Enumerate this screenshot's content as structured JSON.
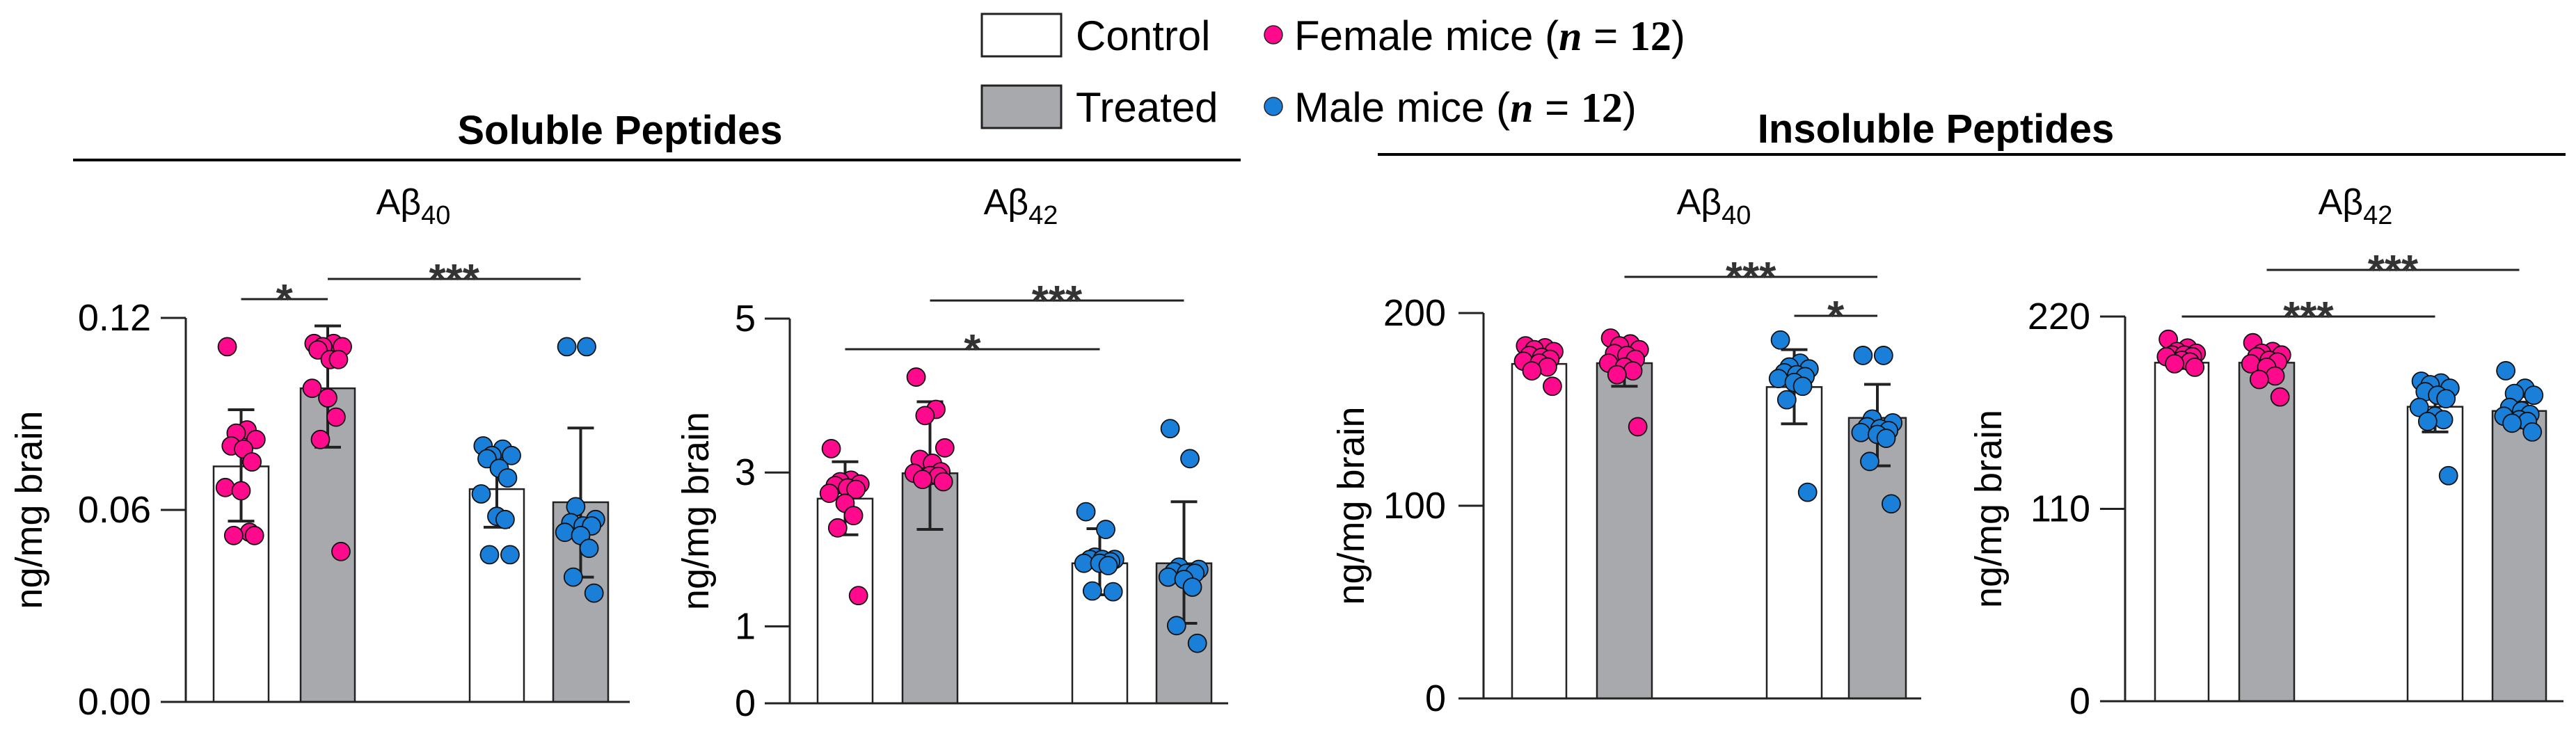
{
  "legend": {
    "conditions": [
      {
        "label": "Control",
        "fill": "#ffffff"
      },
      {
        "label": "Treated",
        "fill": "#a7a9ac"
      }
    ],
    "groups": [
      {
        "label": "Female mice",
        "n_symbol": "n",
        "n_value": "12",
        "color": "#ff0a8c"
      },
      {
        "label": "Male mice",
        "n_symbol": "n",
        "n_value": "12",
        "color": "#1a7fd9"
      }
    ]
  },
  "sections": [
    {
      "title": "Soluble Peptides"
    },
    {
      "title": "Insoluble Peptides"
    }
  ],
  "chart_data": [
    {
      "type": "bar",
      "section": "Soluble Peptides",
      "title": "Aβ",
      "title_sub": "40",
      "ylabel": "ng/mg brain",
      "ylim": [
        0,
        0.12
      ],
      "yticks": [
        {
          "v": 0,
          "label": "0.00"
        },
        {
          "v": 0.06,
          "label": "0.06"
        },
        {
          "v": 0.12,
          "label": "0.12"
        }
      ],
      "bars": [
        {
          "condition": "Control",
          "sex": "Female",
          "mean": 0.0736,
          "err_low": 0.0565,
          "err_high": 0.0913,
          "points": [
            0.111,
            0.085,
            0.084,
            0.082,
            0.08,
            0.079,
            0.075,
            0.067,
            0.066,
            0.053,
            0.052,
            0.052
          ]
        },
        {
          "condition": "Treated",
          "sex": "Female",
          "mean": 0.098,
          "err_low": 0.0796,
          "err_high": 0.1175,
          "points": [
            0.112,
            0.112,
            0.111,
            0.111,
            0.11,
            0.107,
            0.107,
            0.098,
            0.095,
            0.089,
            0.082,
            0.047
          ]
        },
        {
          "condition": "Control",
          "sex": "Male",
          "mean": 0.0665,
          "err_low": 0.0546,
          "err_high": 0.0784,
          "points": [
            0.08,
            0.079,
            0.077,
            0.077,
            0.076,
            0.073,
            0.07,
            0.065,
            0.058,
            0.057,
            0.046,
            0.046
          ]
        },
        {
          "condition": "Treated",
          "sex": "Male",
          "mean": 0.0624,
          "err_low": 0.039,
          "err_high": 0.0856,
          "points": [
            0.111,
            0.111,
            0.061,
            0.057,
            0.056,
            0.055,
            0.055,
            0.053,
            0.052,
            0.048,
            0.039,
            0.034
          ]
        }
      ],
      "significance": [
        {
          "from": 0,
          "to": 1,
          "label": "*"
        },
        {
          "from": 1,
          "to": 3,
          "label": "***"
        }
      ]
    },
    {
      "type": "bar",
      "section": "Soluble Peptides",
      "title": "Aβ",
      "title_sub": "42",
      "ylabel": "ng/mg brain",
      "ylim": [
        0,
        5
      ],
      "yticks": [
        {
          "v": 0,
          "label": "0"
        },
        {
          "v": 1,
          "label": "1"
        },
        {
          "v": 3,
          "label": "3"
        },
        {
          "v": 5,
          "label": "5"
        }
      ],
      "bars": [
        {
          "condition": "Control",
          "sex": "Female",
          "mean": 2.66,
          "err_low": 2.19,
          "err_high": 3.14,
          "points": [
            3.31,
            2.9,
            2.88,
            2.85,
            2.83,
            2.8,
            2.78,
            2.73,
            2.6,
            2.44,
            2.28,
            1.4
          ]
        },
        {
          "condition": "Treated",
          "sex": "Female",
          "mean": 2.99,
          "err_low": 2.26,
          "err_high": 3.92,
          "points": [
            4.24,
            3.82,
            3.74,
            3.32,
            3.17,
            3.12,
            3.01,
            2.99,
            2.96,
            2.95,
            2.91,
            2.88
          ]
        },
        {
          "condition": "Control",
          "sex": "Male",
          "mean": 1.82,
          "err_low": 1.41,
          "err_high": 2.27,
          "points": [
            2.49,
            2.26,
            1.9,
            1.87,
            1.87,
            1.87,
            1.84,
            1.82,
            1.82,
            1.79,
            1.46,
            1.45
          ]
        },
        {
          "condition": "Treated",
          "sex": "Male",
          "mean": 1.82,
          "err_low": 1.04,
          "err_high": 2.62,
          "points": [
            3.57,
            3.18,
            1.77,
            1.74,
            1.71,
            1.69,
            1.69,
            1.64,
            1.61,
            1.51,
            1.01,
            0.78
          ]
        }
      ],
      "significance": [
        {
          "from": 0,
          "to": 2,
          "label": "*"
        },
        {
          "from": 1,
          "to": 3,
          "label": "***"
        }
      ]
    },
    {
      "type": "bar",
      "section": "Insoluble Peptides",
      "title": "Aβ",
      "title_sub": "40",
      "ylabel": "ng/mg brain",
      "ylim": [
        0,
        200
      ],
      "yticks": [
        {
          "v": 0,
          "label": "0"
        },
        {
          "v": 100,
          "label": "100"
        },
        {
          "v": 200,
          "label": "200"
        }
      ],
      "bars": [
        {
          "condition": "Control",
          "sex": "Female",
          "mean": 173.6,
          "err_low": 171,
          "err_high": 176,
          "points": [
            183,
            182,
            181,
            180,
            178,
            177,
            176,
            175,
            174,
            172,
            170,
            162
          ]
        },
        {
          "condition": "Treated",
          "sex": "Female",
          "mean": 174,
          "err_low": 162,
          "err_high": 186,
          "points": [
            187,
            184,
            183,
            181,
            179,
            178,
            176,
            174,
            172,
            170,
            168,
            141
          ]
        },
        {
          "condition": "Control",
          "sex": "Male",
          "mean": 161.6,
          "err_low": 142.5,
          "err_high": 181,
          "points": [
            186,
            174,
            172,
            171,
            169,
            168,
            167,
            166,
            164,
            162,
            155,
            107
          ]
        },
        {
          "condition": "Treated",
          "sex": "Male",
          "mean": 145.6,
          "err_low": 120.7,
          "err_high": 163,
          "points": [
            178,
            178,
            145,
            143,
            141,
            140,
            139,
            138,
            137,
            135,
            123,
            101
          ]
        }
      ],
      "significance": [
        {
          "from": 1,
          "to": 3,
          "label": "***"
        },
        {
          "from": 2,
          "to": 3,
          "label": "*"
        }
      ]
    },
    {
      "type": "bar",
      "section": "Insoluble Peptides",
      "title": "Aβ",
      "title_sub": "42",
      "ylabel": "ng/mg brain",
      "ylim": [
        0,
        220
      ],
      "yticks": [
        {
          "v": 0,
          "label": "0"
        },
        {
          "v": 110,
          "label": "110"
        },
        {
          "v": 220,
          "label": "220"
        }
      ],
      "bars": [
        {
          "condition": "Control",
          "sex": "Female",
          "mean": 193.6,
          "err_low": 191,
          "err_high": 196,
          "points": [
            207,
            202,
            200,
            199,
            198,
            198,
            197,
            197,
            195,
            194,
            193,
            191
          ]
        },
        {
          "condition": "Treated",
          "sex": "Female",
          "mean": 193.6,
          "err_low": 186,
          "err_high": 201,
          "points": [
            205,
            200,
            199,
            198,
            197,
            195,
            194,
            193,
            191,
            186,
            184,
            174
          ]
        },
        {
          "condition": "Control",
          "sex": "Male",
          "mean": 168.4,
          "err_low": 154,
          "err_high": 183,
          "points": [
            183,
            182,
            181,
            179,
            177,
            175,
            173,
            168,
            163,
            161,
            160,
            129
          ]
        },
        {
          "condition": "Treated",
          "sex": "Male",
          "mean": 166,
          "err_low": 161,
          "err_high": 171,
          "points": [
            189,
            179,
            176,
            175,
            168,
            166,
            164,
            163,
            161,
            160,
            159,
            154
          ]
        }
      ],
      "significance": [
        {
          "from": 1,
          "to": 3,
          "label": "***"
        },
        {
          "from": 0,
          "to": 2,
          "label": "***"
        }
      ]
    }
  ]
}
